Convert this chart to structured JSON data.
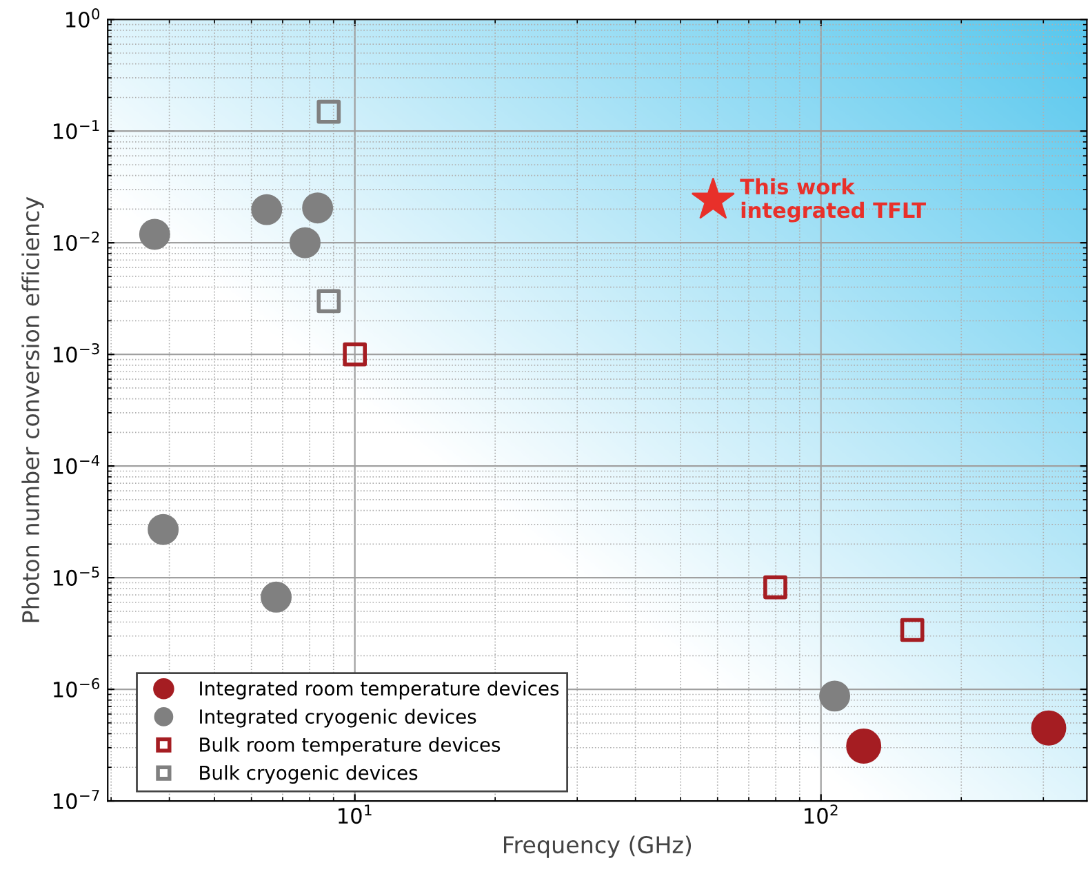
{
  "chart_data": {
    "type": "scatter",
    "log": "xy",
    "xlabel": "Frequency (GHz)",
    "ylabel": "Photon number conversion efficiency",
    "xlim": [
      2.95,
      372
    ],
    "ylim": [
      1e-07,
      1
    ],
    "xticks": [
      {
        "value": 10,
        "label": "10$^{1}$"
      },
      {
        "value": 100,
        "label": "10$^{2}$"
      }
    ],
    "yticks": [
      {
        "value": 1e-07,
        "label": "10$^{−7}$"
      },
      {
        "value": 1e-06,
        "label": "10$^{−6}$"
      },
      {
        "value": 1e-05,
        "label": "10$^{−5}$"
      },
      {
        "value": 0.0001,
        "label": "10$^{−4}$"
      },
      {
        "value": 0.001,
        "label": "10$^{−3}$"
      },
      {
        "value": 0.01,
        "label": "10$^{−2}$"
      },
      {
        "value": 0.1,
        "label": "10$^{−1}$"
      },
      {
        "value": 1,
        "label": "10$^{0}$"
      }
    ],
    "grid": true,
    "legend": "bottom left",
    "series": [
      {
        "name": "Integrated room temperature devices",
        "color": "#a51d22",
        "marker": "circle",
        "x": [
          123.5,
          308
        ],
        "values": [
          3.1e-07,
          4.5e-07
        ]
      },
      {
        "name": "Integrated cryogenic devices",
        "color": "#808080",
        "marker": "circle",
        "x": [
          3.72,
          6.47,
          7.82,
          8.32,
          3.88,
          6.78,
          107
        ],
        "values": [
          0.0119,
          0.0198,
          0.01,
          0.0205,
          2.7e-05,
          6.7e-06,
          8.7e-07
        ]
      },
      {
        "name": "Bulk room temperature devices",
        "color": "#a51d22",
        "marker": "square",
        "x": [
          10,
          79.8,
          157
        ],
        "values": [
          0.001,
          8.2e-06,
          3.4e-06
        ]
      },
      {
        "name": "Bulk cryogenic devices",
        "color": "#808080",
        "marker": "square",
        "x": [
          8.79,
          8.79
        ],
        "values": [
          0.149,
          0.003
        ]
      },
      {
        "color": "#e8302a",
        "marker": "star",
        "x": [
          58.7
        ],
        "values": [
          0.024
        ]
      }
    ],
    "annotations": [
      {
        "text": "This work\nintegrated TFLT",
        "x": 58.7,
        "y": 0.024
      }
    ]
  }
}
